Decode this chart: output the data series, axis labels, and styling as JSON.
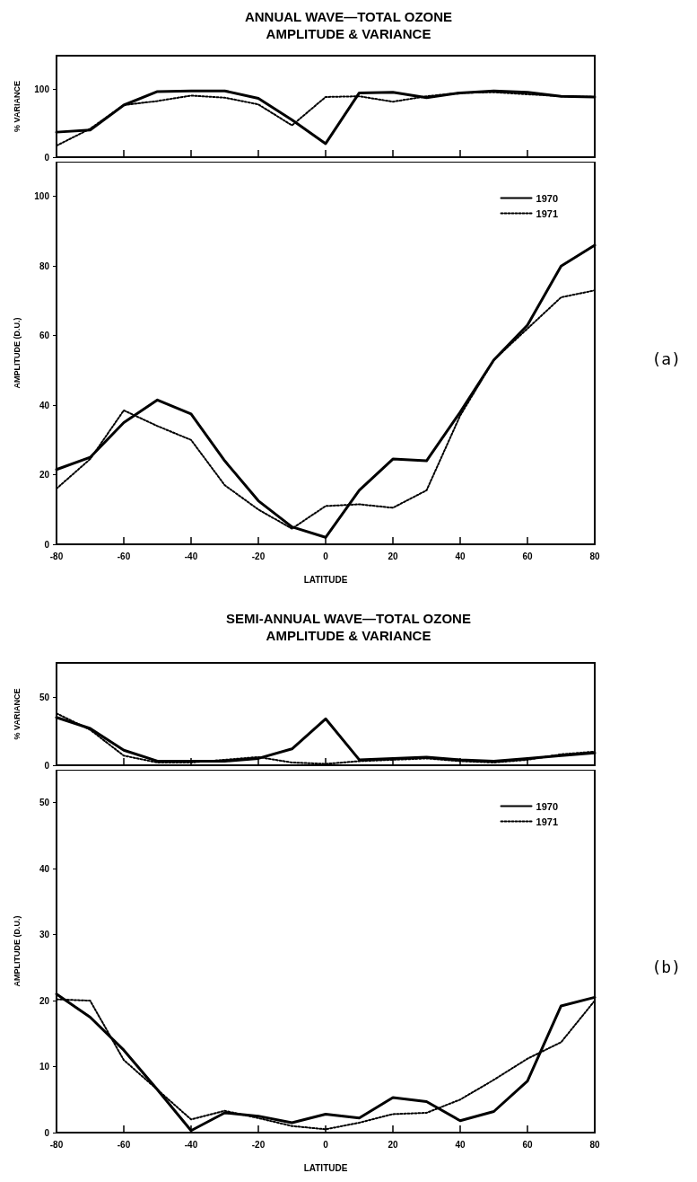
{
  "chart_data": [
    {
      "type": "line",
      "title": "ANNUAL WAVE—TOTAL OZONE\nAMPLITUDE & VARIANCE",
      "ylabel": "% VARIANCE",
      "x": [
        -80,
        -70,
        -60,
        -50,
        -40,
        -30,
        -20,
        -10,
        0,
        10,
        20,
        30,
        40,
        50,
        60,
        70,
        80
      ],
      "xlim": [
        -80,
        80
      ],
      "xticks": [
        -80,
        -60,
        -40,
        -20,
        0,
        20,
        40,
        60,
        80
      ],
      "ylim": [
        0,
        150
      ],
      "yticks": [
        0,
        100
      ],
      "tick_labels": "y",
      "grid": false,
      "legend": false,
      "marker": "none",
      "series": [
        {
          "color": "#000000",
          "line_style": "solid",
          "values": [
            37,
            40,
            77,
            97,
            98,
            98,
            87,
            55,
            20,
            95,
            96,
            88,
            95,
            98,
            96,
            90,
            89
          ]
        },
        {
          "color": "#000000",
          "line_style": "dotted",
          "values": [
            17,
            42,
            77,
            83,
            91,
            88,
            78,
            47,
            89,
            90,
            82,
            90,
            95,
            96,
            93,
            90,
            89
          ]
        }
      ]
    },
    {
      "type": "line",
      "xlabel": "LATITUDE",
      "ylabel": "AMPLITUDE (D.U.)",
      "annotations": [
        "(a)"
      ],
      "x": [
        -80,
        -70,
        -60,
        -50,
        -40,
        -30,
        -20,
        -10,
        0,
        10,
        20,
        30,
        40,
        50,
        60,
        70,
        80
      ],
      "xlim": [
        -80,
        80
      ],
      "xticks": [
        -80,
        -60,
        -40,
        -20,
        0,
        20,
        40,
        60,
        80
      ],
      "ylim": [
        0,
        110
      ],
      "yticks": [
        0,
        20,
        40,
        60,
        80,
        100
      ],
      "grid": false,
      "legend": "top right",
      "marker": "none",
      "series": [
        {
          "name": "1970",
          "color": "#000000",
          "line_style": "solid",
          "values": [
            21.5,
            25,
            35,
            41.5,
            37.5,
            24,
            12.5,
            5,
            2,
            15.5,
            24.5,
            24,
            38,
            53,
            63,
            80,
            86
          ]
        },
        {
          "name": "1971",
          "color": "#000000",
          "line_style": "dotted",
          "values": [
            16,
            24.5,
            38.5,
            34,
            30,
            17,
            10,
            4.5,
            11,
            11.5,
            10.5,
            15.5,
            37,
            53,
            62,
            71,
            73
          ]
        }
      ]
    },
    {
      "type": "line",
      "title": "SEMI-ANNUAL WAVE—TOTAL OZONE\nAMPLITUDE & VARIANCE",
      "ylabel": "% VARIANCE",
      "x": [
        -80,
        -70,
        -60,
        -50,
        -40,
        -30,
        -20,
        -10,
        0,
        10,
        20,
        30,
        40,
        50,
        60,
        70,
        80
      ],
      "xlim": [
        -80,
        80
      ],
      "xticks": [
        -80,
        -60,
        -40,
        -20,
        0,
        20,
        40,
        60,
        80
      ],
      "ylim": [
        0,
        75
      ],
      "yticks": [
        0,
        50
      ],
      "tick_labels": "y",
      "grid": false,
      "legend": false,
      "marker": "none",
      "series": [
        {
          "color": "#000000",
          "line_style": "solid",
          "values": [
            35,
            27,
            11,
            3,
            3,
            3,
            5,
            12,
            34,
            4,
            5,
            6,
            4,
            3,
            5,
            7,
            9
          ]
        },
        {
          "color": "#000000",
          "line_style": "dotted",
          "values": [
            38,
            26,
            7,
            2,
            2,
            4,
            6,
            2,
            1,
            3,
            4,
            5,
            3,
            2,
            4,
            8,
            10
          ]
        }
      ]
    },
    {
      "type": "line",
      "xlabel": "LATITUDE",
      "ylabel": "AMPLITUDE (D.U.)",
      "annotations": [
        "(b)"
      ],
      "x": [
        -80,
        -70,
        -60,
        -50,
        -40,
        -30,
        -20,
        -10,
        0,
        10,
        20,
        30,
        40,
        50,
        60,
        70,
        80
      ],
      "xlim": [
        -80,
        80
      ],
      "xticks": [
        -80,
        -60,
        -40,
        -20,
        0,
        20,
        40,
        60,
        80
      ],
      "ylim": [
        0,
        55
      ],
      "yticks": [
        0,
        10,
        20,
        30,
        40,
        50
      ],
      "grid": false,
      "legend": "top right",
      "marker": "none",
      "series": [
        {
          "name": "1970",
          "color": "#000000",
          "line_style": "solid",
          "values": [
            21,
            17.5,
            12.5,
            6.5,
            0.3,
            3,
            2.5,
            1.5,
            2.8,
            2.2,
            5.3,
            4.7,
            1.8,
            3.2,
            7.8,
            19.2,
            20.5
          ]
        },
        {
          "name": "1971",
          "color": "#000000",
          "line_style": "dotted",
          "values": [
            20.2,
            20,
            11,
            6.5,
            2,
            3.3,
            2.2,
            1,
            0.5,
            1.5,
            2.8,
            3,
            5,
            8,
            11.2,
            13.7,
            20
          ]
        }
      ]
    }
  ]
}
